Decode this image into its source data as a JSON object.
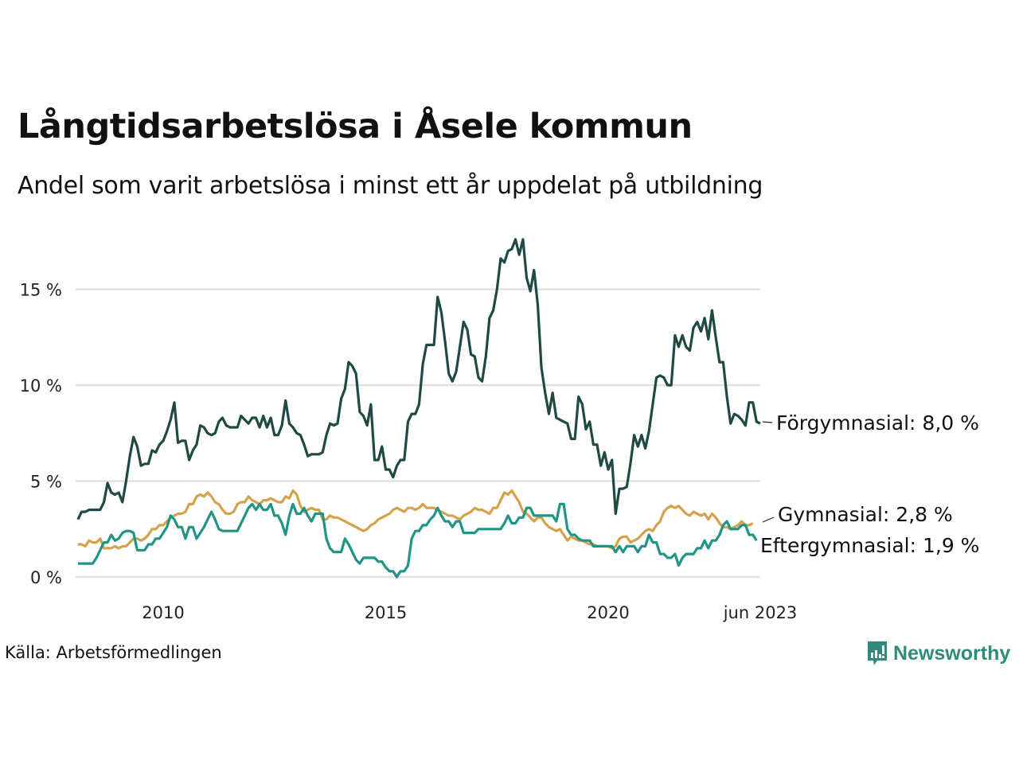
{
  "title": "Långtidsarbetslösa i Åsele kommun",
  "subtitle": "Andel som varit arbetslösa i minst ett år uppdelat på utbildning",
  "source": "Källa: Arbetsförmedlingen",
  "logo": {
    "text": "Newsworthy",
    "icon": "newsworthy-bars-icon",
    "color": "#2f8b7a"
  },
  "chart_data": {
    "type": "line",
    "title": "Långtidsarbetslösa i Åsele kommun",
    "subtitle": "Andel som varit arbetslösa i minst ett år uppdelat på utbildning",
    "xlabel": "",
    "ylabel": "",
    "x_start": "2008-02",
    "x_end": "2023-06",
    "x_frequency": "monthly",
    "ylim": [
      0,
      17.7
    ],
    "yticks": [
      0,
      5,
      10,
      15
    ],
    "ytick_labels": [
      "0 %",
      "5 %",
      "10 %",
      "15 %"
    ],
    "xticks": [
      2010,
      2015,
      2020,
      2023.417
    ],
    "xtick_labels": [
      "2010",
      "2015",
      "2020",
      "jun 2023"
    ],
    "grid": "horizontal",
    "legend": "direct-labels-right",
    "series": [
      {
        "name": "Förgymnasial",
        "color": "#1f4a43",
        "end_label": "Förgymnasial: 8,0 %",
        "values": [
          3.0,
          3.4,
          3.4,
          3.5,
          3.5,
          3.5,
          3.5,
          3.9,
          4.9,
          4.4,
          4.3,
          4.4,
          3.9,
          5.0,
          6.3,
          7.3,
          6.8,
          5.8,
          5.9,
          5.9,
          6.6,
          6.5,
          6.9,
          7.1,
          7.6,
          8.2,
          9.1,
          7.0,
          7.1,
          7.1,
          6.1,
          6.6,
          6.9,
          7.9,
          7.8,
          7.5,
          7.4,
          7.5,
          8.1,
          8.3,
          7.9,
          7.8,
          7.8,
          7.8,
          8.4,
          8.2,
          8.0,
          8.3,
          8.3,
          7.8,
          8.4,
          7.8,
          8.3,
          7.4,
          7.4,
          7.9,
          9.2,
          8.0,
          7.8,
          7.5,
          7.4,
          6.9,
          6.3,
          6.4,
          6.4,
          6.4,
          6.5,
          7.4,
          8.0,
          7.9,
          8.0,
          9.3,
          9.8,
          11.2,
          11.0,
          10.6,
          8.6,
          8.4,
          7.9,
          9.0,
          6.1,
          6.1,
          6.8,
          5.6,
          5.6,
          5.2,
          5.8,
          6.1,
          6.1,
          8.1,
          8.5,
          8.5,
          9.0,
          11.1,
          12.1,
          12.1,
          12.1,
          14.6,
          13.8,
          12.3,
          10.6,
          10.2,
          10.7,
          12.0,
          13.3,
          12.9,
          11.6,
          11.5,
          10.4,
          10.2,
          11.5,
          13.5,
          13.9,
          15.0,
          16.6,
          16.4,
          17.0,
          17.1,
          17.6,
          16.8,
          17.6,
          15.6,
          14.9,
          16.0,
          14.2,
          10.9,
          9.6,
          8.5,
          9.6,
          8.3,
          8.2,
          8.1,
          8.0,
          7.2,
          7.2,
          9.4,
          9.0,
          7.7,
          8.1,
          6.9,
          6.9,
          5.8,
          6.5,
          5.6,
          6.1,
          3.3,
          4.6,
          4.6,
          4.7,
          5.9,
          7.4,
          6.8,
          7.4,
          6.7,
          7.6,
          9.0,
          10.4,
          10.5,
          10.4,
          10.0,
          10.0,
          12.6,
          12.0,
          12.6,
          12.0,
          11.8,
          13.0,
          13.3,
          12.8,
          13.5,
          12.4,
          13.9,
          12.5,
          11.2,
          11.2,
          9.4,
          8.0,
          8.5,
          8.4,
          8.2,
          7.9,
          9.1,
          9.1,
          8.1,
          8.0
        ]
      },
      {
        "name": "Gymnasial",
        "color": "#d4a24c",
        "end_label": "Gymnasial: 2,8 %",
        "values": [
          1.7,
          1.7,
          1.6,
          1.9,
          1.8,
          1.8,
          2.0,
          1.5,
          1.5,
          1.5,
          1.6,
          1.5,
          1.6,
          1.6,
          1.8,
          2.0,
          2.0,
          1.9,
          2.0,
          2.2,
          2.5,
          2.5,
          2.7,
          2.7,
          2.9,
          3.1,
          3.2,
          3.3,
          3.3,
          3.4,
          3.8,
          3.8,
          4.2,
          4.3,
          4.2,
          4.4,
          4.2,
          3.9,
          3.8,
          3.5,
          3.3,
          3.3,
          3.4,
          3.8,
          3.9,
          3.9,
          4.2,
          4.0,
          3.9,
          3.8,
          4.0,
          4.0,
          4.1,
          4.0,
          3.9,
          3.9,
          4.2,
          4.1,
          4.5,
          4.3,
          3.7,
          3.4,
          3.5,
          3.6,
          3.5,
          3.5,
          3.0,
          3.0,
          3.2,
          3.1,
          3.1,
          3.0,
          2.9,
          2.8,
          2.7,
          2.6,
          2.5,
          2.4,
          2.5,
          2.7,
          2.8,
          3.0,
          3.1,
          3.2,
          3.3,
          3.5,
          3.6,
          3.5,
          3.4,
          3.6,
          3.6,
          3.5,
          3.6,
          3.8,
          3.6,
          3.6,
          3.6,
          3.5,
          3.4,
          3.3,
          3.2,
          3.2,
          3.1,
          3.0,
          3.2,
          3.3,
          3.4,
          3.6,
          3.5,
          3.5,
          3.4,
          3.3,
          3.6,
          3.6,
          4.0,
          4.4,
          4.3,
          4.5,
          4.2,
          3.9,
          3.4,
          3.3,
          3.1,
          2.9,
          3.1,
          3.1,
          2.8,
          2.6,
          2.5,
          2.4,
          2.5,
          2.2,
          1.9,
          2.1,
          2.0,
          1.9,
          1.9,
          1.8,
          1.7,
          1.7,
          1.6,
          1.6,
          1.6,
          1.6,
          1.5,
          1.6,
          2.0,
          2.1,
          2.1,
          1.8,
          1.9,
          2.0,
          2.2,
          2.4,
          2.5,
          2.4,
          2.7,
          2.9,
          3.4,
          3.6,
          3.7,
          3.6,
          3.7,
          3.5,
          3.3,
          3.2,
          3.4,
          3.3,
          3.2,
          3.3,
          3.0,
          3.3,
          3.1,
          2.8,
          2.6,
          2.6,
          2.5,
          2.6,
          2.7,
          2.9,
          2.7,
          2.7,
          2.8
        ]
      },
      {
        "name": "Eftergymnasial",
        "color": "#1f9585",
        "end_label": "Eftergymnasial: 1,9 %",
        "values": [
          0.7,
          0.7,
          0.7,
          0.7,
          0.7,
          1.0,
          1.4,
          1.8,
          1.8,
          2.2,
          1.9,
          2.0,
          2.3,
          2.4,
          2.4,
          2.3,
          1.4,
          1.4,
          1.4,
          1.7,
          1.7,
          2.0,
          2.0,
          2.3,
          2.6,
          3.2,
          3.0,
          2.6,
          2.6,
          2.0,
          2.6,
          2.6,
          2.0,
          2.3,
          2.6,
          3.0,
          3.4,
          3.0,
          2.5,
          2.4,
          2.4,
          2.4,
          2.4,
          2.4,
          2.8,
          3.2,
          3.6,
          3.8,
          3.5,
          3.8,
          3.5,
          3.5,
          3.8,
          3.2,
          3.2,
          2.8,
          2.2,
          3.2,
          3.8,
          3.3,
          3.3,
          3.6,
          3.2,
          2.9,
          3.3,
          3.3,
          3.3,
          2.0,
          1.5,
          1.3,
          1.3,
          1.3,
          2.0,
          1.7,
          1.3,
          0.9,
          0.7,
          1.0,
          1.0,
          1.0,
          1.0,
          0.8,
          0.8,
          0.5,
          0.3,
          0.3,
          0.0,
          0.3,
          0.3,
          0.6,
          2.0,
          2.4,
          2.4,
          2.7,
          2.7,
          3.0,
          3.2,
          3.6,
          3.2,
          2.9,
          2.9,
          2.6,
          2.9,
          2.9,
          2.3,
          2.3,
          2.3,
          2.3,
          2.5,
          2.5,
          2.5,
          2.5,
          2.5,
          2.5,
          2.5,
          2.8,
          3.2,
          2.8,
          2.8,
          3.1,
          3.1,
          3.6,
          3.6,
          3.2,
          3.2,
          3.2,
          3.2,
          3.2,
          3.2,
          2.9,
          3.8,
          3.8,
          2.5,
          2.2,
          2.2,
          2.0,
          1.9,
          1.9,
          1.9,
          1.6,
          1.6,
          1.6,
          1.6,
          1.6,
          1.6,
          1.3,
          1.6,
          1.3,
          1.6,
          1.6,
          1.6,
          1.3,
          1.6,
          1.6,
          2.2,
          1.8,
          1.8,
          1.2,
          1.2,
          1.0,
          1.0,
          1.2,
          0.6,
          1.0,
          1.2,
          1.2,
          1.2,
          1.5,
          1.5,
          1.9,
          1.5,
          1.9,
          1.9,
          2.2,
          2.7,
          2.9,
          2.5,
          2.5,
          2.5,
          2.7,
          2.7,
          2.2,
          2.2,
          1.9
        ]
      }
    ]
  }
}
